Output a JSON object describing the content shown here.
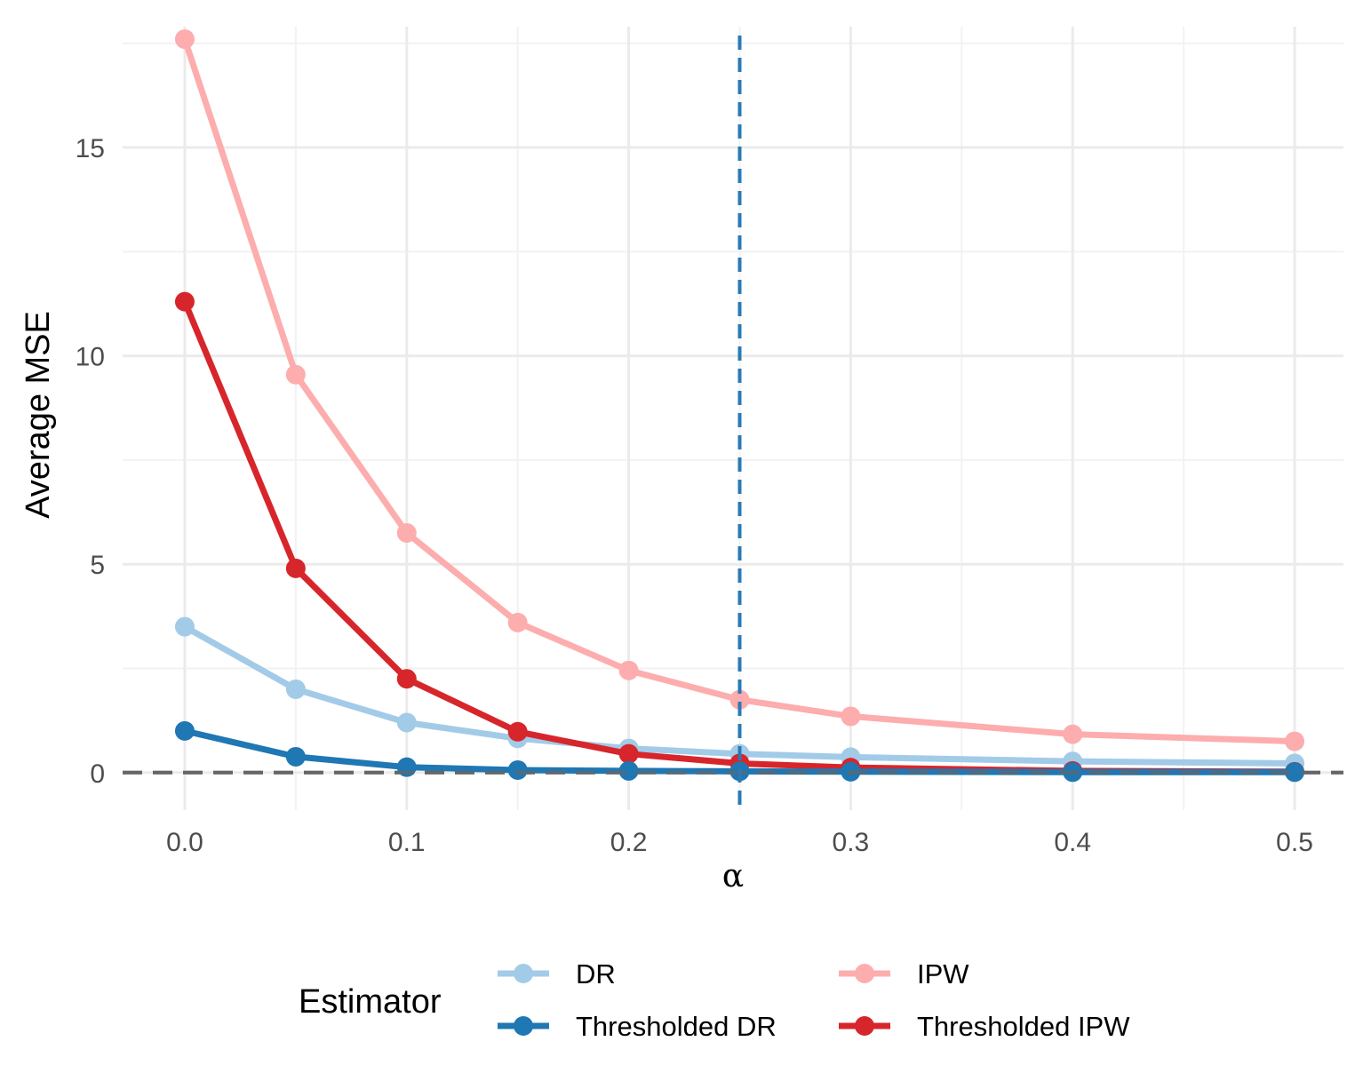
{
  "chart_data": {
    "type": "line",
    "xlabel": "α",
    "ylabel": "Average MSE",
    "xlim": [
      -0.028,
      0.522
    ],
    "ylim": [
      -0.9,
      17.9
    ],
    "x_ticks": [
      0.0,
      0.1,
      0.2,
      0.3,
      0.4,
      0.5
    ],
    "x_tick_labels": [
      "0.0",
      "0.1",
      "0.2",
      "0.3",
      "0.4",
      "0.5"
    ],
    "y_ticks": [
      0,
      5,
      10,
      15
    ],
    "y_tick_labels": [
      "0",
      "5",
      "10",
      "15"
    ],
    "grid": true,
    "reference_lines": [
      {
        "orientation": "horizontal",
        "value": 0,
        "style": "dashed",
        "color": "#666666"
      },
      {
        "orientation": "vertical",
        "value": 0.25,
        "style": "dashed",
        "color": "#2a7ab5"
      }
    ],
    "legend": {
      "title": "Estimator",
      "position": "bottom",
      "entries": [
        "DR",
        "Thresholded DR",
        "IPW",
        "Thresholded IPW"
      ]
    },
    "x": [
      0.0,
      0.05,
      0.1,
      0.15,
      0.2,
      0.25,
      0.3,
      0.4,
      0.5
    ],
    "series": [
      {
        "name": "DR",
        "color": "#a2cbe8",
        "values": [
          3.5,
          2.0,
          1.2,
          0.82,
          0.58,
          0.45,
          0.37,
          0.27,
          0.22
        ]
      },
      {
        "name": "IPW",
        "color": "#fdadad",
        "values": [
          17.6,
          9.55,
          5.75,
          3.6,
          2.45,
          1.75,
          1.35,
          0.92,
          0.75
        ]
      },
      {
        "name": "Thresholded IPW",
        "color": "#d7262b",
        "values": [
          11.3,
          4.9,
          2.25,
          0.98,
          0.45,
          0.22,
          0.12,
          0.04,
          0.02
        ]
      },
      {
        "name": "Thresholded DR",
        "color": "#1f77b4",
        "values": [
          1.0,
          0.38,
          0.13,
          0.06,
          0.04,
          0.03,
          0.02,
          0.01,
          0.01
        ]
      }
    ]
  }
}
